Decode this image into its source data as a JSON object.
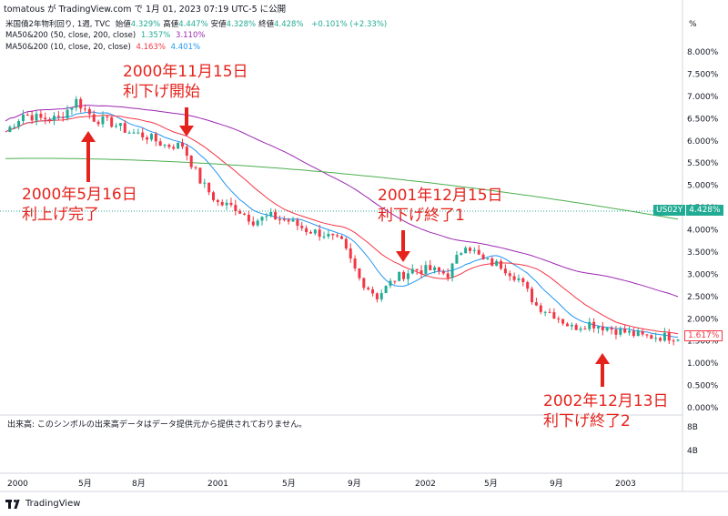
{
  "header": {
    "author_line": "tomatous が TradingView.com で 1月 01, 2023 07:19 UTC-5 に公開",
    "symbol_title": "米国債2年物利回り, 1週, TVC",
    "ohlc": [
      {
        "label": "始値",
        "value": "4.329%"
      },
      {
        "label": "高値",
        "value": "4.447%"
      },
      {
        "label": "安値",
        "value": "4.328%"
      },
      {
        "label": "終値",
        "value": "4.428%"
      }
    ],
    "change": "+0.101% (+2.33%)",
    "ma_lines": [
      {
        "label": "MA50&200 (50, close, 200, close)",
        "v1": "1.357%",
        "v2": "3.110%",
        "c1": "#2196f3",
        "c2": "#9c27b0"
      },
      {
        "label": "MA50&200 (10, close, 20, close)",
        "v1": "4.163%",
        "v2": "4.401%",
        "c1": "#f23645",
        "c2": "#2196f3"
      }
    ]
  },
  "price_axis": {
    "unit": "%",
    "ticks": [
      "8.000%",
      "7.500%",
      "7.000%",
      "6.500%",
      "6.000%",
      "5.500%",
      "5.000%",
      "4.500%",
      "4.000%",
      "3.500%",
      "3.000%",
      "2.500%",
      "2.000%",
      "1.500%",
      "1.000%",
      "0.500%",
      "0.000%"
    ],
    "badges": [
      {
        "label": "US02Y",
        "value": "4.428%",
        "color": "#22ab94"
      },
      {
        "label": "",
        "value": "1.617%",
        "color": "#f23645"
      }
    ]
  },
  "volume_pane": {
    "note": "出来高: このシンボルの出来高データはデータ提供元から提供されておりません。",
    "ticks": [
      "8B",
      "4B"
    ]
  },
  "time_axis": {
    "ticks": [
      "2000",
      "5月",
      "8月",
      "2001",
      "5月",
      "9月",
      "2002",
      "5月",
      "9月",
      "2003"
    ]
  },
  "annotations": [
    {
      "line1": "2000年11月15日",
      "line2": "利下げ開始"
    },
    {
      "line1": "2000年5月16日",
      "line2": "利上げ完了"
    },
    {
      "line1": "2001年12月15日",
      "line2": "利下げ終了1"
    },
    {
      "line1": "2002年12月13日",
      "line2": "利下げ終了2"
    }
  ],
  "footer": {
    "brand": "TradingView"
  },
  "colors": {
    "up": "#22ab94",
    "down": "#f23645",
    "ma_red": "#f23645",
    "ma_blue": "#2196f3",
    "ma_purple": "#9c27b0",
    "ma_green": "#4caf50",
    "annotation": "#e5231c"
  },
  "chart_data": {
    "type": "candlestick",
    "y_unit": "%",
    "ylim": [
      0,
      8.5
    ],
    "x_range": [
      "2000-01",
      "2003-03"
    ],
    "approx_weekly_close_path": [
      [
        "2000-01",
        6.2
      ],
      [
        "2000-02",
        6.6
      ],
      [
        "2000-03",
        6.5
      ],
      [
        "2000-04",
        6.5
      ],
      [
        "2000-05",
        6.9
      ],
      [
        "2000-06",
        6.5
      ],
      [
        "2000-07",
        6.4
      ],
      [
        "2000-08",
        6.2
      ],
      [
        "2000-09",
        6.1
      ],
      [
        "2000-10",
        5.9
      ],
      [
        "2000-11",
        5.9
      ],
      [
        "2000-12",
        5.1
      ],
      [
        "2001-01",
        4.6
      ],
      [
        "2001-02",
        4.5
      ],
      [
        "2001-03",
        4.2
      ],
      [
        "2001-04",
        4.3
      ],
      [
        "2001-05",
        4.2
      ],
      [
        "2001-06",
        4.0
      ],
      [
        "2001-07",
        3.9
      ],
      [
        "2001-08",
        3.7
      ],
      [
        "2001-09",
        2.9
      ],
      [
        "2001-10",
        2.5
      ],
      [
        "2001-11",
        2.9
      ],
      [
        "2001-12",
        3.1
      ],
      [
        "2002-01",
        3.1
      ],
      [
        "2002-02",
        3.0
      ],
      [
        "2002-03",
        3.7
      ],
      [
        "2002-04",
        3.3
      ],
      [
        "2002-05",
        3.2
      ],
      [
        "2002-06",
        2.9
      ],
      [
        "2002-07",
        2.3
      ],
      [
        "2002-08",
        2.1
      ],
      [
        "2002-09",
        1.8
      ],
      [
        "2002-10",
        1.9
      ],
      [
        "2002-11",
        1.8
      ],
      [
        "2002-12",
        1.7
      ],
      [
        "2003-01",
        1.6
      ],
      [
        "2003-02",
        1.6
      ],
      [
        "2003-03",
        1.6
      ]
    ],
    "series": [
      {
        "name": "MA50&200 (50)",
        "color": "#2196f3"
      },
      {
        "name": "MA50&200 (200)",
        "color": "#9c27b0"
      },
      {
        "name": "MA50&200 (10)",
        "color": "#f23645"
      },
      {
        "name": "MA50&200 (20)",
        "color": "#2196f3"
      }
    ]
  }
}
